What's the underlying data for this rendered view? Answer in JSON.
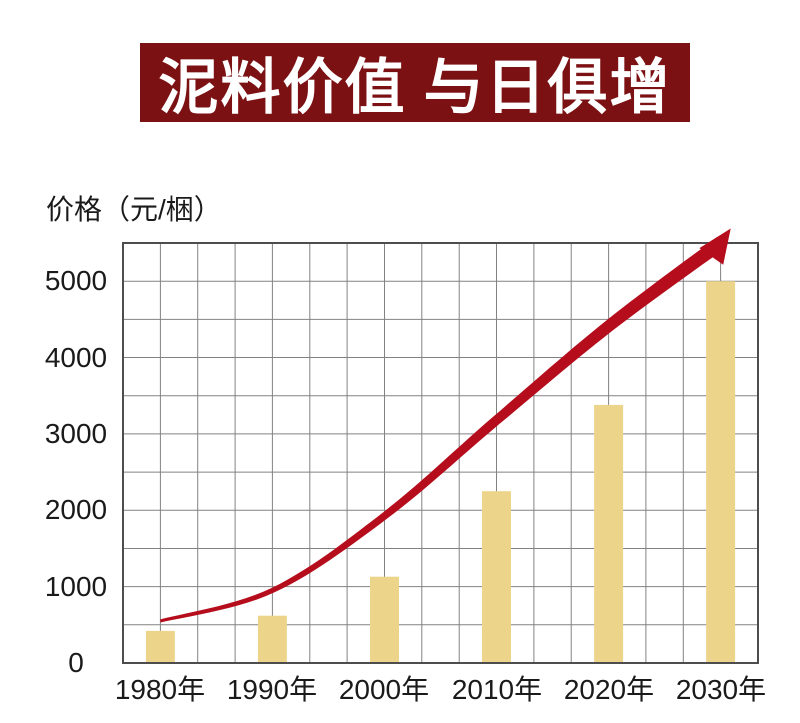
{
  "chart_data": {
    "type": "bar",
    "title": "泥料价值 与日俱增",
    "ylabel": "价格（元/梱）",
    "categories": [
      "1980年",
      "1990年",
      "2000年",
      "2010年",
      "2020年",
      "2030年"
    ],
    "values": [
      420,
      620,
      1130,
      2250,
      3380,
      5000
    ],
    "yticks": [
      0,
      1000,
      2000,
      3000,
      4000,
      5000
    ],
    "ylim": [
      0,
      5500
    ],
    "grid": true,
    "grid_step": 500,
    "legend": "none",
    "trend_arrow": {
      "points_year_value": [
        [
          1980,
          550
        ],
        [
          1990,
          950
        ],
        [
          2000,
          1925
        ],
        [
          2010,
          3180
        ],
        [
          2020,
          4410
        ],
        [
          2030,
          5500
        ]
      ],
      "tip_year_value": [
        2030.9,
        5690
      ]
    },
    "colors": {
      "bar": "#ecd58b",
      "arrow": "#b50d1c",
      "banner_bg": "#7c1114",
      "banner_text": "#ffffff",
      "grid": "#828282",
      "border": "#4d4d4d",
      "text": "#1a1a1a"
    }
  }
}
